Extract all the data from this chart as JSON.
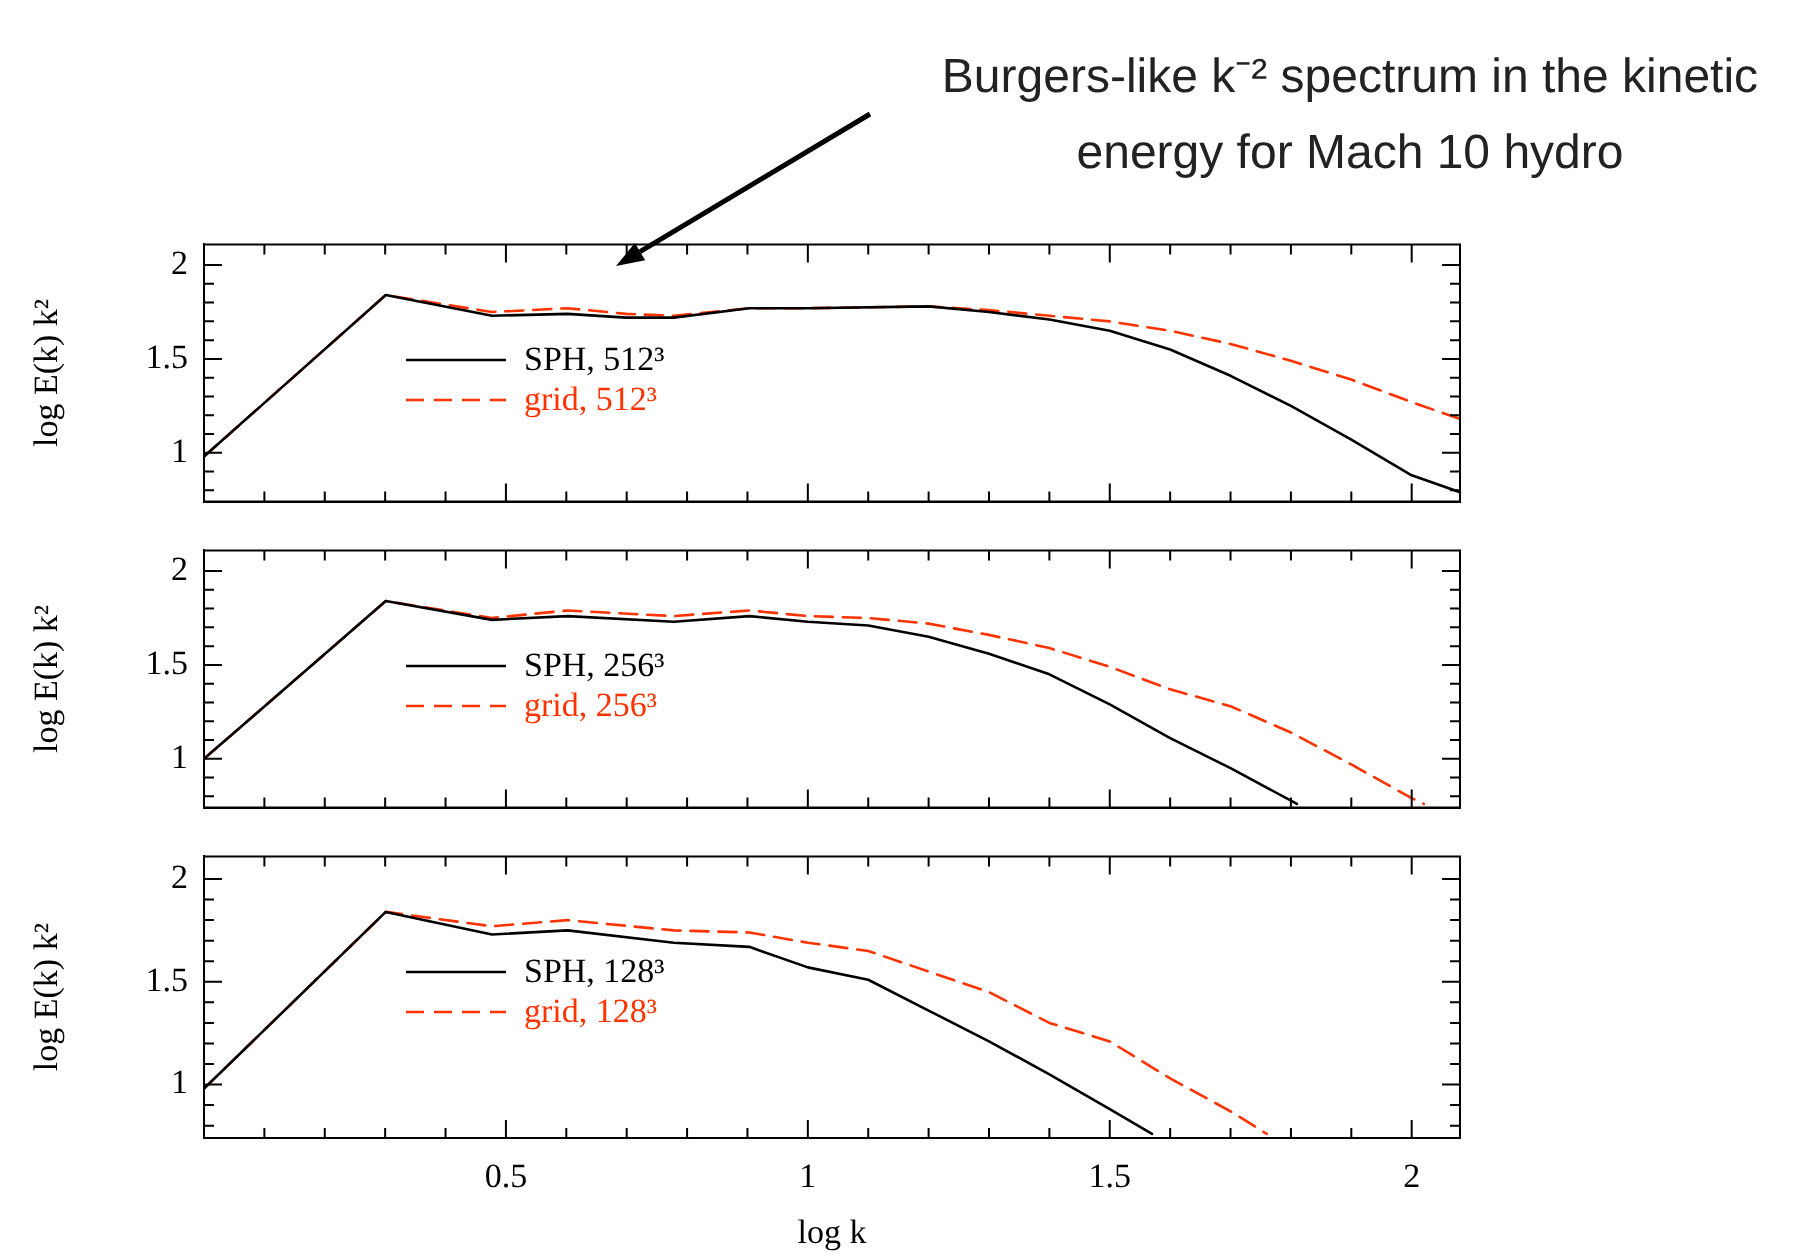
{
  "chart_data": [
    {
      "type": "line",
      "ylabel": "log E(k) k²",
      "legend": "left",
      "tick_labels": "y",
      "annotations": [
        "Burgers-like k⁻² spectrum in the kinetic energy for Mach 10 hydro"
      ],
      "xlim": [
        0,
        2.08
      ],
      "ylim": [
        0.74,
        2.11
      ],
      "xticks": [
        {
          "value": 0.1,
          "label": null
        },
        {
          "value": 0.2,
          "label": null
        },
        {
          "value": 0.3,
          "label": null
        },
        {
          "value": 0.4,
          "label": null
        },
        0.5,
        {
          "value": 0.6,
          "label": null
        },
        {
          "value": 0.7,
          "label": null
        },
        {
          "value": 0.8,
          "label": null
        },
        {
          "value": 0.9,
          "label": null
        },
        1,
        {
          "value": 1.1,
          "label": null
        },
        {
          "value": 1.2,
          "label": null
        },
        {
          "value": 1.3,
          "label": null
        },
        {
          "value": 1.4,
          "label": null
        },
        1.5,
        {
          "value": 1.6,
          "label": null
        },
        {
          "value": 1.7,
          "label": null
        },
        {
          "value": 1.8,
          "label": null
        },
        {
          "value": 1.9,
          "label": null
        },
        2
      ],
      "yticks": [
        {
          "value": 0.8,
          "label": null
        },
        {
          "value": 0.9,
          "label": null
        },
        1,
        {
          "value": 1.1,
          "label": null
        },
        {
          "value": 1.2,
          "label": null
        },
        {
          "value": 1.3,
          "label": null
        },
        {
          "value": 1.4,
          "label": null
        },
        1.5,
        {
          "value": 1.6,
          "label": null
        },
        {
          "value": 1.7,
          "label": null
        },
        {
          "value": 1.8,
          "label": null
        },
        {
          "value": 1.9,
          "label": null
        },
        2
      ],
      "series": [
        {
          "name": "SPH, 512³",
          "color": "#000000",
          "line_style": "solid",
          "x": [
            0,
            0.301,
            0.477,
            0.602,
            0.699,
            0.778,
            0.903,
            1.0,
            1.2,
            1.3,
            1.4,
            1.5,
            1.6,
            1.7,
            1.8,
            1.9,
            2.0,
            2.08
          ],
          "values": [
            0.98,
            1.84,
            1.73,
            1.74,
            1.72,
            1.72,
            1.77,
            1.77,
            1.78,
            1.75,
            1.71,
            1.65,
            1.55,
            1.41,
            1.25,
            1.07,
            0.88,
            0.79
          ]
        },
        {
          "name": "grid, 512³",
          "color": "#ff3300",
          "line_style": "dashed",
          "x": [
            0,
            0.301,
            0.477,
            0.602,
            0.699,
            0.778,
            0.903,
            1.0,
            1.2,
            1.3,
            1.4,
            1.5,
            1.6,
            1.7,
            1.8,
            1.9,
            2.0,
            2.08
          ],
          "values": [
            0.98,
            1.84,
            1.75,
            1.77,
            1.74,
            1.73,
            1.77,
            1.77,
            1.78,
            1.76,
            1.73,
            1.7,
            1.65,
            1.58,
            1.49,
            1.39,
            1.27,
            1.18
          ]
        }
      ]
    },
    {
      "type": "line",
      "ylabel": "log E(k) k²",
      "legend": "left",
      "tick_labels": "y",
      "xlim": [
        0,
        2.08
      ],
      "ylim": [
        0.74,
        2.11
      ],
      "xticks": [
        {
          "value": 0.1,
          "label": null
        },
        {
          "value": 0.2,
          "label": null
        },
        {
          "value": 0.3,
          "label": null
        },
        {
          "value": 0.4,
          "label": null
        },
        0.5,
        {
          "value": 0.6,
          "label": null
        },
        {
          "value": 0.7,
          "label": null
        },
        {
          "value": 0.8,
          "label": null
        },
        {
          "value": 0.9,
          "label": null
        },
        1,
        {
          "value": 1.1,
          "label": null
        },
        {
          "value": 1.2,
          "label": null
        },
        {
          "value": 1.3,
          "label": null
        },
        {
          "value": 1.4,
          "label": null
        },
        1.5,
        {
          "value": 1.6,
          "label": null
        },
        {
          "value": 1.7,
          "label": null
        },
        {
          "value": 1.8,
          "label": null
        },
        {
          "value": 1.9,
          "label": null
        },
        2
      ],
      "yticks": [
        {
          "value": 0.8,
          "label": null
        },
        {
          "value": 0.9,
          "label": null
        },
        1,
        {
          "value": 1.1,
          "label": null
        },
        {
          "value": 1.2,
          "label": null
        },
        {
          "value": 1.3,
          "label": null
        },
        {
          "value": 1.4,
          "label": null
        },
        1.5,
        {
          "value": 1.6,
          "label": null
        },
        {
          "value": 1.7,
          "label": null
        },
        {
          "value": 1.8,
          "label": null
        },
        {
          "value": 1.9,
          "label": null
        },
        2
      ],
      "series": [
        {
          "name": "SPH, 256³",
          "color": "#000000",
          "line_style": "solid",
          "x": [
            0,
            0.301,
            0.477,
            0.602,
            0.778,
            0.903,
            1.0,
            1.1,
            1.2,
            1.3,
            1.4,
            1.5,
            1.6,
            1.7,
            1.81
          ],
          "values": [
            1.0,
            1.84,
            1.74,
            1.76,
            1.73,
            1.76,
            1.73,
            1.71,
            1.65,
            1.56,
            1.45,
            1.29,
            1.11,
            0.95,
            0.76
          ]
        },
        {
          "name": "grid, 256³",
          "color": "#ff3300",
          "line_style": "dashed",
          "x": [
            0,
            0.301,
            0.477,
            0.602,
            0.778,
            0.903,
            1.0,
            1.1,
            1.2,
            1.3,
            1.4,
            1.5,
            1.6,
            1.7,
            1.8,
            1.9,
            2.0,
            2.02
          ],
          "values": [
            1.0,
            1.84,
            1.75,
            1.79,
            1.76,
            1.79,
            1.76,
            1.75,
            1.72,
            1.66,
            1.59,
            1.49,
            1.37,
            1.28,
            1.14,
            0.97,
            0.79,
            0.76
          ]
        }
      ]
    },
    {
      "type": "line",
      "ylabel": "log E(k) k²",
      "xlabel": "log k",
      "legend": "left",
      "xlim": [
        0,
        2.08
      ],
      "ylim": [
        0.74,
        2.11
      ],
      "xticks": [
        {
          "value": 0.1,
          "label": null
        },
        {
          "value": 0.2,
          "label": null
        },
        {
          "value": 0.3,
          "label": null
        },
        {
          "value": 0.4,
          "label": null
        },
        0.5,
        {
          "value": 0.6,
          "label": null
        },
        {
          "value": 0.7,
          "label": null
        },
        {
          "value": 0.8,
          "label": null
        },
        {
          "value": 0.9,
          "label": null
        },
        1,
        {
          "value": 1.1,
          "label": null
        },
        {
          "value": 1.2,
          "label": null
        },
        {
          "value": 1.3,
          "label": null
        },
        {
          "value": 1.4,
          "label": null
        },
        1.5,
        {
          "value": 1.6,
          "label": null
        },
        {
          "value": 1.7,
          "label": null
        },
        {
          "value": 1.8,
          "label": null
        },
        {
          "value": 1.9,
          "label": null
        },
        2
      ],
      "yticks": [
        {
          "value": 0.8,
          "label": null
        },
        {
          "value": 0.9,
          "label": null
        },
        1,
        {
          "value": 1.1,
          "label": null
        },
        {
          "value": 1.2,
          "label": null
        },
        {
          "value": 1.3,
          "label": null
        },
        {
          "value": 1.4,
          "label": null
        },
        1.5,
        {
          "value": 1.6,
          "label": null
        },
        {
          "value": 1.7,
          "label": null
        },
        {
          "value": 1.8,
          "label": null
        },
        {
          "value": 1.9,
          "label": null
        },
        2
      ],
      "series": [
        {
          "name": "SPH, 128³",
          "color": "#000000",
          "line_style": "solid",
          "x": [
            0,
            0.301,
            0.477,
            0.602,
            0.778,
            0.903,
            1.0,
            1.1,
            1.2,
            1.3,
            1.4,
            1.5,
            1.57
          ],
          "values": [
            0.98,
            1.84,
            1.73,
            1.75,
            1.69,
            1.67,
            1.57,
            1.51,
            1.36,
            1.21,
            1.05,
            0.88,
            0.76
          ]
        },
        {
          "name": "grid, 128³",
          "color": "#ff3300",
          "line_style": "dashed",
          "x": [
            0,
            0.301,
            0.477,
            0.602,
            0.778,
            0.903,
            1.0,
            1.1,
            1.2,
            1.3,
            1.4,
            1.5,
            1.6,
            1.7,
            1.76
          ],
          "values": [
            0.98,
            1.84,
            1.77,
            1.8,
            1.75,
            1.74,
            1.69,
            1.65,
            1.55,
            1.45,
            1.3,
            1.21,
            1.03,
            0.87,
            0.76
          ]
        }
      ]
    }
  ]
}
